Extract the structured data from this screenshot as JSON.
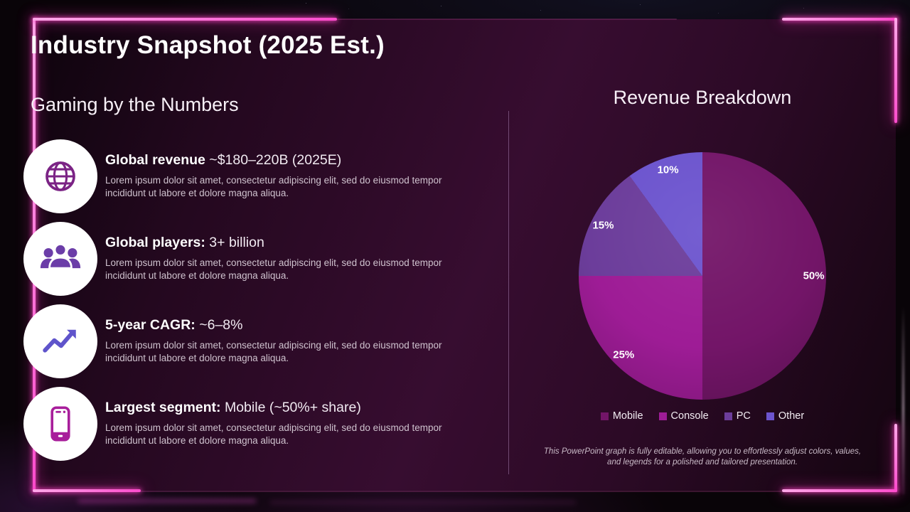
{
  "slide": {
    "title": "Industry Snapshot (2025 Est.)",
    "accent_neon": "#ff55d1",
    "left_section": {
      "heading": "Gaming by the Numbers",
      "items": [
        {
          "icon": "globe-icon",
          "label_bold": "Global revenue",
          "label_rest": " ~$180–220B (2025E)",
          "body": "Lorem ipsum dolor sit amet, consectetur adipiscing elit, sed do eiusmod tempor incididunt ut labore et dolore magna aliqua."
        },
        {
          "icon": "people-icon",
          "label_bold": "Global players:",
          "label_rest": " 3+ billion",
          "body": "Lorem ipsum dolor sit amet, consectetur adipiscing elit, sed do eiusmod tempor incididunt ut labore et dolore magna aliqua."
        },
        {
          "icon": "trend-up-icon",
          "label_bold": "5-year CAGR:",
          "label_rest": " ~6–8%",
          "body": "Lorem ipsum dolor sit amet, consectetur adipiscing elit, sed do eiusmod tempor incididunt ut labore et dolore magna aliqua."
        },
        {
          "icon": "smartphone-icon",
          "label_bold": "Largest segment:",
          "label_rest": " Mobile (~50%+ share)",
          "body": "Lorem ipsum dolor sit amet, consectetur adipiscing elit, sed do eiusmod tempor incididunt ut labore et dolore magna aliqua."
        }
      ]
    },
    "right_section": {
      "heading": "Revenue Breakdown",
      "footnote_line1": "This PowerPoint graph is fully editable, allowing you to effortlessly adjust colors, values,",
      "footnote_line2": "and legends for a polished and tailored presentation."
    }
  },
  "chart_data": {
    "type": "pie",
    "title": "Revenue Breakdown",
    "categories": [
      "Mobile",
      "Console",
      "PC",
      "Other"
    ],
    "values": [
      50,
      25,
      15,
      10
    ],
    "labels": [
      "50%",
      "25%",
      "15%",
      "10%"
    ],
    "colors": [
      "#731568",
      "#9E1C96",
      "#6C3D9B",
      "#6C54CE"
    ],
    "start_angle_deg": 0,
    "direction": "clockwise",
    "legend_position": "bottom",
    "label_radius_fraction": 0.9
  }
}
